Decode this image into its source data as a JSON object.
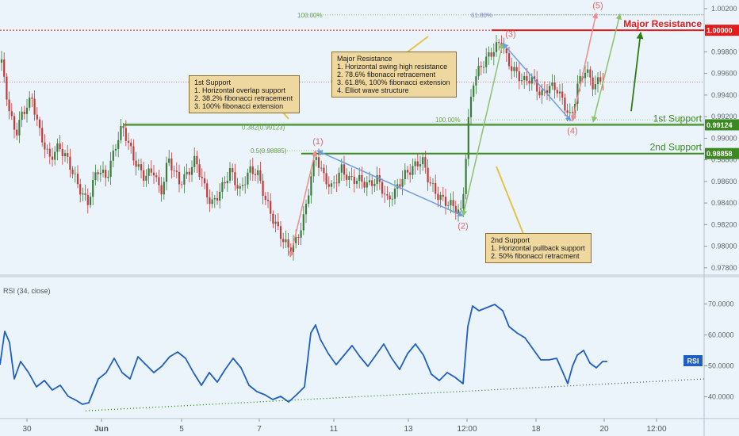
{
  "chart_data": [
    {
      "type": "candlestick",
      "ylim": [
        0.9774,
        1.0028
      ],
      "yticks": [
        "1.00200",
        "0.99800",
        "0.99600",
        "0.99400",
        "0.99200",
        "0.99000",
        "0.98800",
        "0.98600",
        "0.98400",
        "0.98200",
        "0.98000",
        "0.97800"
      ],
      "xticks": [
        "30",
        "Jun",
        "5",
        "7",
        "11",
        "13",
        "12:00",
        "18",
        "20",
        "12:00"
      ],
      "key_points": [
        {
          "label": "(1)",
          "x": "Jun 8",
          "value": 0.98885
        },
        {
          "label": "(2)",
          "x": "Jun 13",
          "value": 0.9828
        },
        {
          "label": "(3)",
          "x": "Jun 15",
          "value": 0.9988
        },
        {
          "label": "(4)",
          "x": "Jun 19",
          "value": 0.9916
        },
        {
          "label": "(5)",
          "x": "Jun 20",
          "value": 1.0016
        }
      ],
      "levels": [
        {
          "name": "Major Resistance",
          "value": 1.0,
          "price_label": "1.00000",
          "color": "#e31b1b"
        },
        {
          "name": "1st Support",
          "value": 0.99124,
          "price_label": "0.99124",
          "color": "#3a8a1f"
        },
        {
          "name": "2nd Support",
          "value": 0.98858,
          "price_label": "0.98858",
          "color": "#3a8a1f"
        }
      ],
      "fib_labels": [
        "100.00%",
        "61.80%",
        "100.00%",
        "0.382(0.99123)",
        "0.5(0.98885)"
      ]
    },
    {
      "type": "line",
      "title": "RSI (34, close)",
      "series": [
        {
          "name": "RSI",
          "color": "#1f5fc4"
        }
      ],
      "ylim": [
        33,
        77
      ],
      "yticks": [
        "70.0000",
        "60.0000",
        "50.0000",
        "40.0000"
      ],
      "last_value_label": "RSI",
      "trendline_start": 35.5,
      "trendline_end": 45.8
    }
  ],
  "annotations": {
    "first_support": {
      "title": "1st Support",
      "lines": [
        "1. Horizontal overlap support",
        "2. 38.2% fibonacci retracement",
        "3. 100% fibonacci extension"
      ]
    },
    "major_resistance": {
      "title": "Major Resistance",
      "lines": [
        "1. Horizontal swing high resistance",
        "2. 78.6% fibonacci retracement",
        "3. 61.8%, 100% fibonacci extension",
        "4. Elliot wave structure"
      ]
    },
    "second_support": {
      "title": "2nd Support",
      "lines": [
        "1. Horizontal pullback support",
        "2. 50% fibonacci retracment"
      ]
    }
  },
  "colors": {
    "background": "#ebf4fb",
    "bull": "#3a7d3a",
    "bear": "#c43a3a",
    "rsi": "#1f5fc4",
    "resistance": "#e31b1b",
    "support": "#3a8a1f"
  }
}
